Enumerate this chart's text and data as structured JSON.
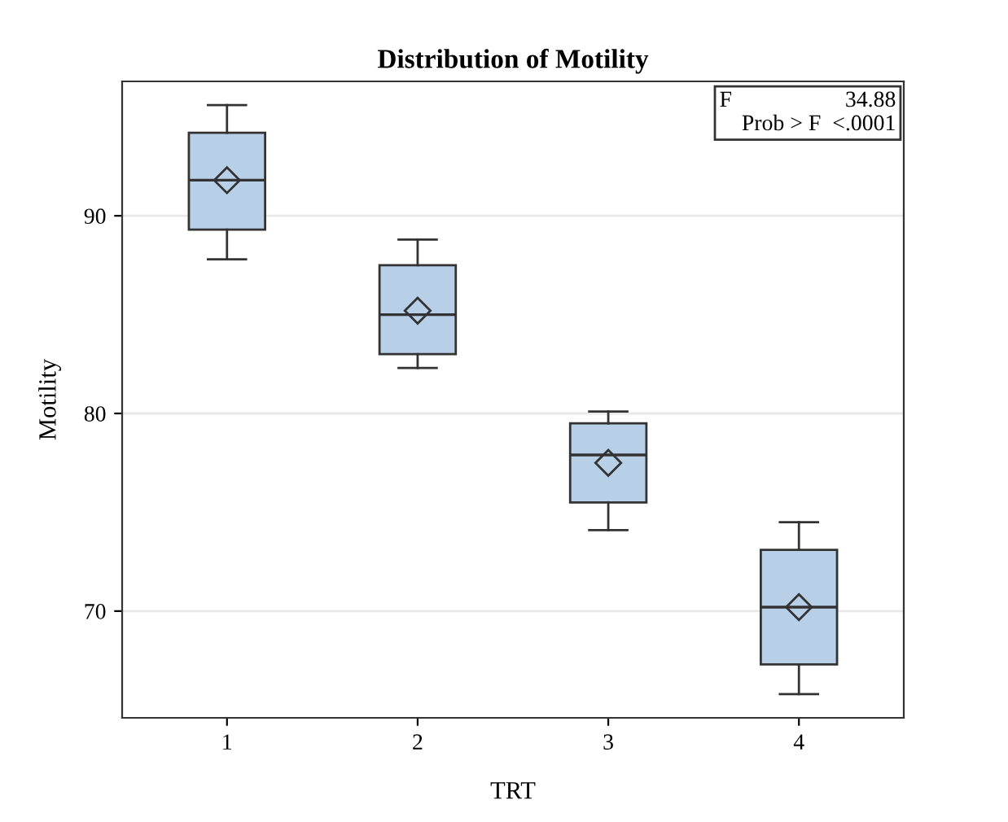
{
  "chart_data": {
    "type": "box",
    "title": "Distribution of Motility",
    "xlabel": "TRT",
    "ylabel": "Motility",
    "categories": [
      "1",
      "2",
      "3",
      "4"
    ],
    "boxes": [
      {
        "low": 87.8,
        "q1": 89.3,
        "median": 91.8,
        "q3": 94.2,
        "high": 95.6,
        "mean": 91.8
      },
      {
        "low": 82.3,
        "q1": 83.0,
        "median": 85.0,
        "q3": 87.5,
        "high": 88.8,
        "mean": 85.2
      },
      {
        "low": 74.1,
        "q1": 75.5,
        "median": 77.9,
        "q3": 79.5,
        "high": 80.1,
        "mean": 77.5
      },
      {
        "low": 65.8,
        "q1": 67.3,
        "median": 70.2,
        "q3": 73.1,
        "high": 74.5,
        "mean": 70.2
      }
    ],
    "color": "#b8cfe8",
    "ylim": [
      64.6,
      96.8
    ],
    "yticks": [
      70,
      80,
      90
    ],
    "grid": "y",
    "marker": "diamond",
    "annotations": [
      "F                    34.88",
      "Prob > F  <.0001"
    ]
  }
}
